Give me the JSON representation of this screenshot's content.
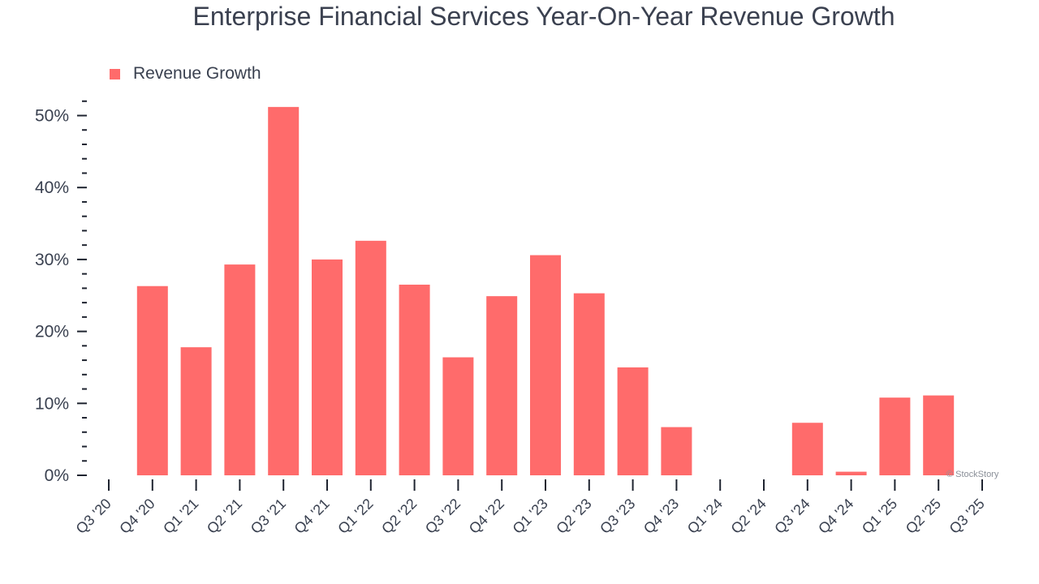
{
  "chart_data": {
    "type": "bar",
    "title": "Enterprise Financial Services Year-On-Year Revenue Growth",
    "xlabel": "",
    "ylabel": "",
    "categories": [
      "Q3 '20",
      "Q4 '20",
      "Q1 '21",
      "Q2 '21",
      "Q3 '21",
      "Q4 '21",
      "Q1 '22",
      "Q2 '22",
      "Q3 '22",
      "Q4 '22",
      "Q1 '23",
      "Q2 '23",
      "Q3 '23",
      "Q4 '23",
      "Q1 '24",
      "Q2 '24",
      "Q3 '24",
      "Q4 '24",
      "Q1 '25",
      "Q2 '25",
      "Q3 '25"
    ],
    "series": [
      {
        "name": "Revenue Growth",
        "color": "#ff6b6b",
        "values": [
          null,
          26.3,
          17.8,
          29.3,
          51.2,
          30.0,
          32.6,
          26.5,
          16.4,
          24.9,
          30.6,
          25.3,
          15.0,
          6.7,
          null,
          null,
          7.3,
          0.5,
          10.8,
          11.1,
          null
        ]
      }
    ],
    "ylim": [
      0,
      52
    ],
    "yticks": [
      0,
      10,
      20,
      30,
      40,
      50
    ],
    "ytick_labels": [
      "0%",
      "10%",
      "20%",
      "30%",
      "40%",
      "50%"
    ],
    "grid": false,
    "legend_position": "top-left"
  },
  "watermark": "© StockStory"
}
